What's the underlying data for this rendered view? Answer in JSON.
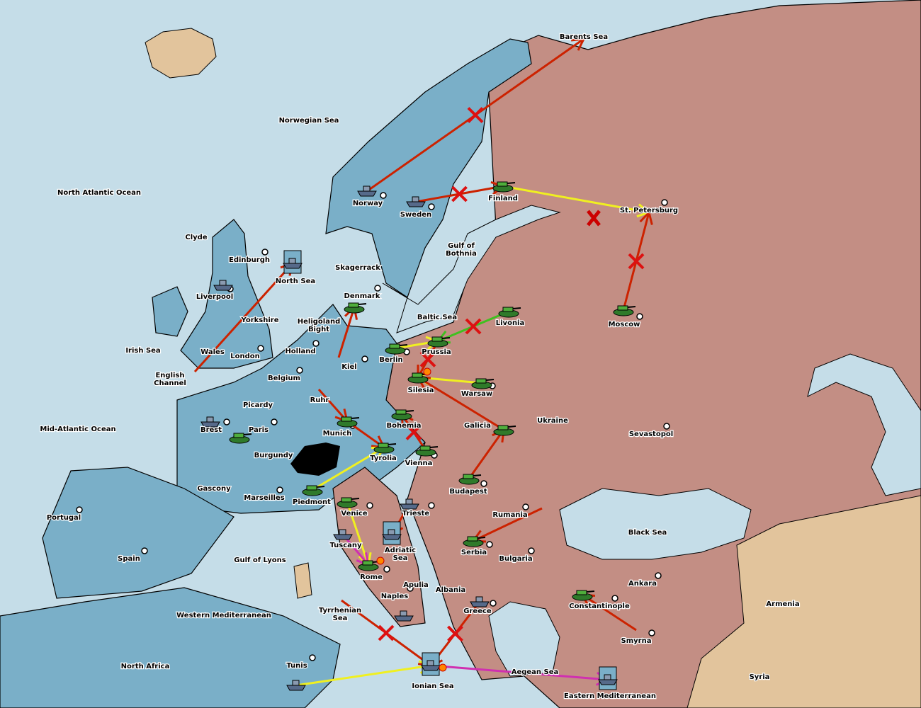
{
  "map": {
    "colors": {
      "sea": "#c5dde8",
      "power_blue": "#7aafc8",
      "power_pink": "#c38e84",
      "neutral": "#e2c49c",
      "move": "#cc2200",
      "support": "#f0f020",
      "hold_support": "#40c020",
      "convoy": "#d030b0"
    },
    "territories": [
      {
        "name": "Barents Sea"
      },
      {
        "name": "Norwegian Sea"
      },
      {
        "name": "North Atlantic Ocean"
      },
      {
        "name": "Norway"
      },
      {
        "name": "Sweden"
      },
      {
        "name": "Finland"
      },
      {
        "name": "St. Petersburg"
      },
      {
        "name": "Gulf of Bothnia"
      },
      {
        "name": "Clyde"
      },
      {
        "name": "Edinburgh"
      },
      {
        "name": "North Sea"
      },
      {
        "name": "Skagerrack"
      },
      {
        "name": "Liverpool"
      },
      {
        "name": "Denmark"
      },
      {
        "name": "Yorkshire"
      },
      {
        "name": "Baltic Sea"
      },
      {
        "name": "Livonia"
      },
      {
        "name": "Moscow"
      },
      {
        "name": "Heligoland Bight"
      },
      {
        "name": "Irish Sea"
      },
      {
        "name": "Wales"
      },
      {
        "name": "London"
      },
      {
        "name": "Holland"
      },
      {
        "name": "Prussia"
      },
      {
        "name": "Berlin"
      },
      {
        "name": "Kiel"
      },
      {
        "name": "English Channel"
      },
      {
        "name": "Belgium"
      },
      {
        "name": "Silesia"
      },
      {
        "name": "Warsaw"
      },
      {
        "name": "Ruhr"
      },
      {
        "name": "Picardy"
      },
      {
        "name": "Ukraine"
      },
      {
        "name": "Galicia"
      },
      {
        "name": "Mid-Atlantic Ocean"
      },
      {
        "name": "Brest"
      },
      {
        "name": "Paris"
      },
      {
        "name": "Bohemia"
      },
      {
        "name": "Munich"
      },
      {
        "name": "Sevastopol"
      },
      {
        "name": "Burgundy"
      },
      {
        "name": "Tyrolia"
      },
      {
        "name": "Vienna"
      },
      {
        "name": "Gascony"
      },
      {
        "name": "Budapest"
      },
      {
        "name": "Marseilles"
      },
      {
        "name": "Piedmont"
      },
      {
        "name": "Portugal"
      },
      {
        "name": "Venice"
      },
      {
        "name": "Trieste"
      },
      {
        "name": "Rumania"
      },
      {
        "name": "Black Sea"
      },
      {
        "name": "Spain"
      },
      {
        "name": "Tuscany"
      },
      {
        "name": "Adriatic Sea"
      },
      {
        "name": "Serbia"
      },
      {
        "name": "Bulgaria"
      },
      {
        "name": "Gulf of Lyons"
      },
      {
        "name": "Rome"
      },
      {
        "name": "Apulia"
      },
      {
        "name": "Albania"
      },
      {
        "name": "Ankara"
      },
      {
        "name": "Naples"
      },
      {
        "name": "Armenia"
      },
      {
        "name": "Constantinople"
      },
      {
        "name": "Greece"
      },
      {
        "name": "Western Mediterranean"
      },
      {
        "name": "Tyrrhenian Sea"
      },
      {
        "name": "Smyrna"
      },
      {
        "name": "North Africa"
      },
      {
        "name": "Tunis"
      },
      {
        "name": "Aegean Sea"
      },
      {
        "name": "Ionian Sea"
      },
      {
        "name": "Syria"
      },
      {
        "name": "Eastern Mediterranean"
      }
    ],
    "units": [
      {
        "type": "fleet",
        "at": "Norway"
      },
      {
        "type": "fleet",
        "at": "Sweden"
      },
      {
        "type": "fleet",
        "at": "North Sea",
        "dislodged": true
      },
      {
        "type": "fleet",
        "at": "Liverpool"
      },
      {
        "type": "fleet",
        "at": "Brest"
      },
      {
        "type": "fleet",
        "at": "Tuscany"
      },
      {
        "type": "fleet",
        "at": "Adriatic Sea",
        "dislodged": true
      },
      {
        "type": "fleet",
        "at": "Trieste"
      },
      {
        "type": "fleet",
        "at": "Naples"
      },
      {
        "type": "fleet",
        "at": "Ionian Sea",
        "dislodged": true
      },
      {
        "type": "fleet",
        "at": "Tunis"
      },
      {
        "type": "fleet",
        "at": "Greece"
      },
      {
        "type": "fleet",
        "at": "Eastern Mediterranean",
        "dislodged": true
      },
      {
        "type": "army",
        "at": "Finland"
      },
      {
        "type": "army",
        "at": "Livonia"
      },
      {
        "type": "army",
        "at": "Moscow"
      },
      {
        "type": "army",
        "at": "Denmark"
      },
      {
        "type": "army",
        "at": "Prussia"
      },
      {
        "type": "army",
        "at": "Berlin"
      },
      {
        "type": "army",
        "at": "Silesia"
      },
      {
        "type": "army",
        "at": "Warsaw"
      },
      {
        "type": "army",
        "at": "Bohemia"
      },
      {
        "type": "army",
        "at": "Munich"
      },
      {
        "type": "army",
        "at": "Tyrolia"
      },
      {
        "type": "army",
        "at": "Vienna"
      },
      {
        "type": "army",
        "at": "Galicia"
      },
      {
        "type": "army",
        "at": "Budapest"
      },
      {
        "type": "army",
        "at": "Paris"
      },
      {
        "type": "army",
        "at": "Piedmont"
      },
      {
        "type": "army",
        "at": "Venice"
      },
      {
        "type": "army",
        "at": "Serbia"
      },
      {
        "type": "army",
        "at": "Rome"
      },
      {
        "type": "army",
        "at": "Constantinople"
      }
    ],
    "orders": [
      {
        "from": "Norway",
        "to": "Barents Sea",
        "kind": "move",
        "failed": true
      },
      {
        "from": "Sweden",
        "to": "Finland",
        "kind": "move",
        "failed": true
      },
      {
        "from": "Finland",
        "to": "St. Petersburg",
        "kind": "support",
        "failed": false
      },
      {
        "from": "Moscow",
        "to": "St. Petersburg",
        "kind": "move",
        "failed": true
      },
      {
        "from": "Wales",
        "to": "North Sea",
        "kind": "move",
        "failed": false
      },
      {
        "from": "Kiel",
        "to": "Denmark",
        "kind": "move",
        "failed": false
      },
      {
        "from": "Livonia",
        "to": "Prussia",
        "kind": "hold_support",
        "failed": true
      },
      {
        "from": "Berlin",
        "to": "Prussia",
        "kind": "support",
        "failed": false
      },
      {
        "from": "Prussia",
        "to": "Silesia",
        "kind": "move",
        "failed": true
      },
      {
        "from": "Warsaw",
        "to": "Silesia",
        "kind": "support",
        "failed": false
      },
      {
        "from": "Galicia",
        "to": "Silesia",
        "kind": "move",
        "failed": false
      },
      {
        "from": "Budapest",
        "to": "Galicia",
        "kind": "move",
        "failed": false
      },
      {
        "from": "Ruhr",
        "to": "Munich",
        "kind": "move",
        "failed": false
      },
      {
        "from": "Munich",
        "to": "Tyrolia",
        "kind": "move",
        "failed": false
      },
      {
        "from": "Piedmont",
        "to": "Tyrolia",
        "kind": "support",
        "failed": false
      },
      {
        "from": "Vienna",
        "to": "Bohemia",
        "kind": "move",
        "failed": true
      },
      {
        "from": "Rumania",
        "to": "Serbia",
        "kind": "move",
        "failed": false
      },
      {
        "from": "Venice",
        "to": "Rome",
        "kind": "support",
        "failed": false
      },
      {
        "from": "Tuscany",
        "to": "Rome",
        "kind": "convoy",
        "failed": false
      },
      {
        "from": "Trieste",
        "to": "Adriatic Sea",
        "kind": "move",
        "failed": false
      },
      {
        "from": "Tunis",
        "to": "Ionian Sea",
        "kind": "support",
        "failed": false
      },
      {
        "from": "Tyrrhenian Sea",
        "to": "Ionian Sea",
        "kind": "move",
        "failed": true
      },
      {
        "from": "Greece",
        "to": "Ionian Sea",
        "kind": "move",
        "failed": true
      },
      {
        "from": "Ionian Sea",
        "to": "Eastern Mediterranean",
        "kind": "convoy",
        "failed": false
      },
      {
        "from": "Smyrna",
        "to": "Constantinople",
        "kind": "move",
        "failed": false
      }
    ]
  }
}
